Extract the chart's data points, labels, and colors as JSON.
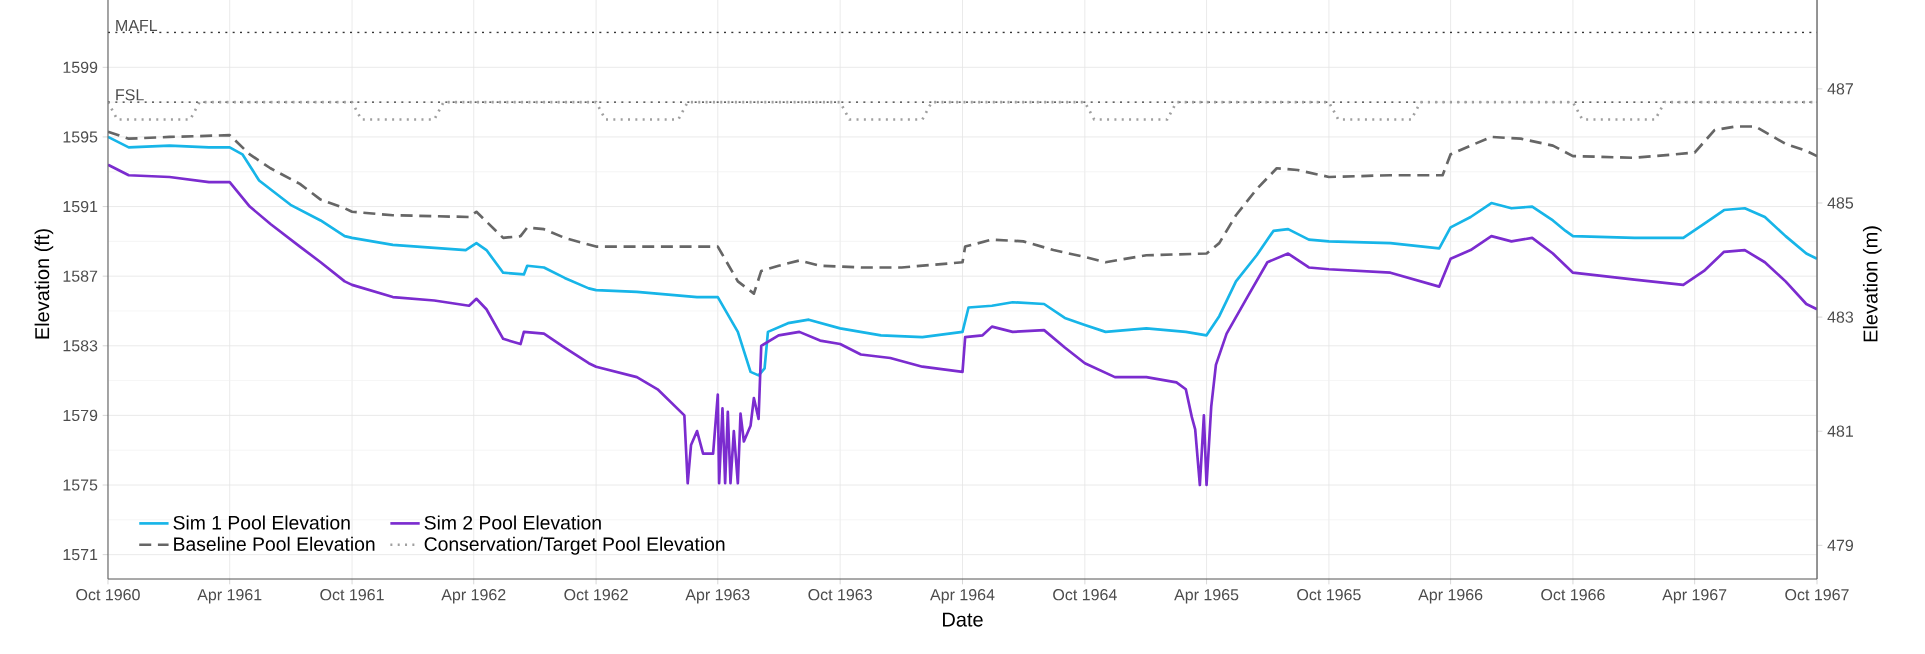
{
  "chart_data": {
    "type": "line",
    "xlabel": "Date",
    "ylabel": "Elevation (ft)",
    "y2label": "Elevation (m)",
    "xlim": [
      "1960-10",
      "1967-10"
    ],
    "xticks": [
      {
        "value": "1960-10",
        "label": "Oct 1960"
      },
      {
        "value": "1961-04",
        "label": "Apr 1961"
      },
      {
        "value": "1961-10",
        "label": "Oct 1961"
      },
      {
        "value": "1962-04",
        "label": "Apr 1962"
      },
      {
        "value": "1962-10",
        "label": "Oct 1962"
      },
      {
        "value": "1963-04",
        "label": "Apr 1963"
      },
      {
        "value": "1963-10",
        "label": "Oct 1963"
      },
      {
        "value": "1964-04",
        "label": "Apr 1964"
      },
      {
        "value": "1964-10",
        "label": "Oct 1964"
      },
      {
        "value": "1965-04",
        "label": "Apr 1965"
      },
      {
        "value": "1965-10",
        "label": "Oct 1965"
      },
      {
        "value": "1966-04",
        "label": "Apr 1966"
      },
      {
        "value": "1966-10",
        "label": "Oct 1966"
      },
      {
        "value": "1967-04",
        "label": "Apr 1967"
      },
      {
        "value": "1967-10",
        "label": "Oct 1967"
      }
    ],
    "ylim": [
      1569.6,
      1603.5
    ],
    "yticks": [
      1571,
      1575,
      1579,
      1583,
      1587,
      1591,
      1595,
      1599
    ],
    "y2lim": [
      478.41,
      488.75
    ],
    "y2ticks": [
      479,
      481,
      483,
      485,
      487
    ],
    "grid": true,
    "legend": "bottom left",
    "marker": "none",
    "ref_lines": [
      {
        "axis": "y",
        "value": 1601,
        "label": "MAFL",
        "color": "#333333",
        "line_style": "dotted"
      },
      {
        "axis": "y",
        "value": 1597,
        "label": "FSL",
        "color": "#333333",
        "line_style": "dotted"
      }
    ],
    "series": [
      {
        "name": "Sim 1 Pool Elevation",
        "color": "#17b5e8",
        "line_style": "solid",
        "x": [
          "1960-10-01",
          "1960-11-01",
          "1961-01-01",
          "1961-03-01",
          "1961-04-01",
          "1961-04-20",
          "1961-05-15",
          "1961-07-01",
          "1961-08-15",
          "1961-09-20",
          "1961-10-01",
          "1961-12-01",
          "1962-03-20",
          "1962-04-05",
          "1962-04-20",
          "1962-05-15",
          "1962-06-15",
          "1962-06-20",
          "1962-07-15",
          "1962-08-15",
          "1962-09-20",
          "1962-10-01",
          "1962-12-01",
          "1963-03-01",
          "1963-04-01",
          "1963-05-01",
          "1963-05-20",
          "1963-06-01",
          "1963-06-10",
          "1963-06-15",
          "1963-07-15",
          "1963-08-15",
          "1963-10-01",
          "1963-12-01",
          "1964-02-01",
          "1964-04-01",
          "1964-04-10",
          "1964-05-15",
          "1964-06-15",
          "1964-08-01",
          "1964-09-01",
          "1964-10-01",
          "1964-11-01",
          "1965-01-01",
          "1965-03-01",
          "1965-04-01",
          "1965-04-20",
          "1965-05-15",
          "1965-06-15",
          "1965-07-10",
          "1965-08-01",
          "1965-09-01",
          "1965-10-01",
          "1966-01-01",
          "1966-03-15",
          "1966-04-01",
          "1966-05-01",
          "1966-06-01",
          "1966-07-01",
          "1966-08-01",
          "1966-09-01",
          "1966-09-20",
          "1966-10-01",
          "1967-01-01",
          "1967-03-15",
          "1967-04-15",
          "1967-05-15",
          "1967-06-15",
          "1967-07-15",
          "1967-08-15",
          "1967-09-15",
          "1967-10-01"
        ],
        "values": [
          1595.0,
          1594.4,
          1594.5,
          1594.4,
          1594.4,
          1594.0,
          1592.5,
          1591.1,
          1590.2,
          1589.3,
          1589.2,
          1588.8,
          1588.5,
          1588.9,
          1588.5,
          1587.2,
          1587.1,
          1587.6,
          1587.5,
          1586.9,
          1586.3,
          1586.2,
          1586.1,
          1585.8,
          1585.8,
          1583.8,
          1581.5,
          1581.3,
          1581.7,
          1583.8,
          1584.3,
          1584.5,
          1584.0,
          1583.6,
          1583.5,
          1583.8,
          1585.2,
          1585.3,
          1585.5,
          1585.4,
          1584.6,
          1584.2,
          1583.8,
          1584.0,
          1583.8,
          1583.6,
          1584.7,
          1586.7,
          1588.2,
          1589.6,
          1589.7,
          1589.1,
          1589.0,
          1588.9,
          1588.6,
          1589.8,
          1590.4,
          1591.2,
          1590.9,
          1591.0,
          1590.2,
          1589.6,
          1589.3,
          1589.2,
          1589.2,
          1590.0,
          1590.8,
          1590.9,
          1590.4,
          1589.3,
          1588.3,
          1588.0
        ]
      },
      {
        "name": "Sim 2 Pool Elevation",
        "color": "#7b2ccf",
        "line_style": "solid",
        "x": [
          "1960-10-01",
          "1960-11-01",
          "1961-01-01",
          "1961-03-01",
          "1961-04-01",
          "1961-05-01",
          "1961-06-01",
          "1961-07-15",
          "1961-08-15",
          "1961-09-20",
          "1961-10-01",
          "1961-12-01",
          "1962-02-01",
          "1962-03-25",
          "1962-04-05",
          "1962-04-20",
          "1962-05-15",
          "1962-06-10",
          "1962-06-15",
          "1962-07-15",
          "1962-08-15",
          "1962-09-20",
          "1962-10-01",
          "1962-12-01",
          "1963-01-01",
          "1963-02-10",
          "1963-02-15",
          "1963-02-20",
          "1963-03-01",
          "1963-03-10",
          "1963-03-25",
          "1963-04-01",
          "1963-04-03",
          "1963-04-08",
          "1963-04-12",
          "1963-04-16",
          "1963-04-20",
          "1963-04-25",
          "1963-05-01",
          "1963-05-05",
          "1963-05-10",
          "1963-05-20",
          "1963-05-25",
          "1963-06-01",
          "1963-06-05",
          "1963-07-01",
          "1963-08-01",
          "1963-09-01",
          "1963-10-01",
          "1963-11-01",
          "1963-12-15",
          "1964-02-01",
          "1964-04-01",
          "1964-04-05",
          "1964-05-01",
          "1964-05-15",
          "1964-06-15",
          "1964-08-01",
          "1964-09-01",
          "1964-10-01",
          "1964-11-15",
          "1965-01-01",
          "1965-02-15",
          "1965-03-01",
          "1965-03-10",
          "1965-03-15",
          "1965-03-22",
          "1965-03-28",
          "1965-04-01",
          "1965-04-08",
          "1965-04-15",
          "1965-05-01",
          "1965-06-01",
          "1965-07-01",
          "1965-08-01",
          "1965-09-01",
          "1965-10-01",
          "1966-01-01",
          "1966-03-15",
          "1966-04-01",
          "1966-05-01",
          "1966-06-01",
          "1966-07-01",
          "1966-08-01",
          "1966-09-01",
          "1966-10-01",
          "1967-01-01",
          "1967-03-15",
          "1967-04-15",
          "1967-05-15",
          "1967-06-15",
          "1967-07-15",
          "1967-08-15",
          "1967-09-15",
          "1967-10-01"
        ],
        "values": [
          1593.4,
          1592.8,
          1592.7,
          1592.4,
          1592.4,
          1591.0,
          1590.0,
          1588.7,
          1587.8,
          1586.7,
          1586.5,
          1585.8,
          1585.6,
          1585.3,
          1585.7,
          1585.1,
          1583.4,
          1583.1,
          1583.8,
          1583.7,
          1582.9,
          1582.0,
          1581.8,
          1581.2,
          1580.5,
          1579.0,
          1575.1,
          1577.3,
          1578.1,
          1576.8,
          1576.8,
          1580.2,
          1575.1,
          1579.4,
          1575.1,
          1579.2,
          1575.1,
          1578.1,
          1575.1,
          1579.1,
          1577.5,
          1578.4,
          1580.0,
          1578.8,
          1583.0,
          1583.6,
          1583.8,
          1583.3,
          1583.1,
          1582.5,
          1582.3,
          1581.8,
          1581.5,
          1583.5,
          1583.6,
          1584.1,
          1583.8,
          1583.9,
          1582.9,
          1582.0,
          1581.2,
          1581.2,
          1580.9,
          1580.5,
          1578.9,
          1578.2,
          1575.0,
          1579.0,
          1575.0,
          1579.5,
          1581.9,
          1583.7,
          1585.8,
          1587.8,
          1588.3,
          1587.5,
          1587.4,
          1587.2,
          1586.4,
          1588.0,
          1588.5,
          1589.3,
          1589.0,
          1589.2,
          1588.3,
          1587.2,
          1586.8,
          1586.5,
          1587.3,
          1588.4,
          1588.5,
          1587.8,
          1586.7,
          1585.4,
          1585.1
        ]
      },
      {
        "name": "Baseline Pool Elevation",
        "color": "#666666",
        "line_style": "dashed",
        "x": [
          "1960-10-01",
          "1960-11-01",
          "1961-01-01",
          "1961-04-01",
          "1961-05-01",
          "1961-06-01",
          "1961-07-15",
          "1961-08-15",
          "1961-09-20",
          "1961-10-01",
          "1961-12-01",
          "1962-03-25",
          "1962-04-05",
          "1962-05-15",
          "1962-06-10",
          "1962-06-20",
          "1962-07-15",
          "1962-08-15",
          "1962-10-01",
          "1963-01-01",
          "1963-04-01",
          "1963-05-01",
          "1963-05-25",
          "1963-06-05",
          "1963-07-01",
          "1963-08-01",
          "1963-09-01",
          "1963-11-01",
          "1964-01-01",
          "1964-04-01",
          "1964-04-05",
          "1964-05-15",
          "1964-07-01",
          "1964-08-15",
          "1964-10-01",
          "1964-11-01",
          "1965-01-01",
          "1965-04-01",
          "1965-04-20",
          "1965-05-15",
          "1965-06-15",
          "1965-07-15",
          "1965-08-15",
          "1965-10-01",
          "1966-01-01",
          "1966-03-20",
          "1966-04-01",
          "1966-05-01",
          "1966-06-01",
          "1966-07-15",
          "1966-09-01",
          "1966-10-01",
          "1967-01-01",
          "1967-04-01",
          "1967-05-01",
          "1967-06-01",
          "1967-07-01",
          "1967-08-15",
          "1967-09-15",
          "1967-10-01"
        ],
        "values": [
          1595.3,
          1594.9,
          1595.0,
          1595.1,
          1594.0,
          1593.2,
          1592.3,
          1591.4,
          1590.9,
          1590.7,
          1590.5,
          1590.4,
          1590.7,
          1589.2,
          1589.3,
          1589.8,
          1589.7,
          1589.2,
          1588.7,
          1588.7,
          1588.7,
          1586.7,
          1586.0,
          1587.3,
          1587.6,
          1587.9,
          1587.6,
          1587.5,
          1587.5,
          1587.8,
          1588.7,
          1589.1,
          1589.0,
          1588.5,
          1588.1,
          1587.8,
          1588.2,
          1588.3,
          1588.9,
          1590.5,
          1592.0,
          1593.2,
          1593.1,
          1592.7,
          1592.8,
          1592.8,
          1594.0,
          1594.5,
          1595.0,
          1594.9,
          1594.5,
          1593.9,
          1593.8,
          1594.1,
          1595.4,
          1595.6,
          1595.6,
          1594.6,
          1594.2,
          1593.9
        ]
      },
      {
        "name": "Conservation/Target Pool Elevation",
        "color": "#a0a0a0",
        "line_style": "dotted",
        "x": [
          "1960-10-01",
          "1960-10-15",
          "1961-02-01",
          "1961-02-15",
          "1961-10-01",
          "1961-10-15",
          "1962-02-01",
          "1962-02-15",
          "1962-10-01",
          "1962-10-15",
          "1963-02-01",
          "1963-02-15",
          "1963-10-01",
          "1963-10-15",
          "1964-02-01",
          "1964-02-15",
          "1964-10-01",
          "1964-10-15",
          "1965-02-01",
          "1965-02-15",
          "1965-10-01",
          "1965-10-15",
          "1966-02-01",
          "1966-02-15",
          "1966-10-01",
          "1966-10-15",
          "1967-02-01",
          "1967-02-15",
          "1967-10-01"
        ],
        "values": [
          1597,
          1596,
          1596,
          1597,
          1597,
          1596,
          1596,
          1597,
          1597,
          1596,
          1596,
          1597,
          1597,
          1596,
          1596,
          1597,
          1597,
          1596,
          1596,
          1597,
          1597,
          1596,
          1596,
          1597,
          1597,
          1596,
          1596,
          1597,
          1597
        ]
      }
    ]
  }
}
